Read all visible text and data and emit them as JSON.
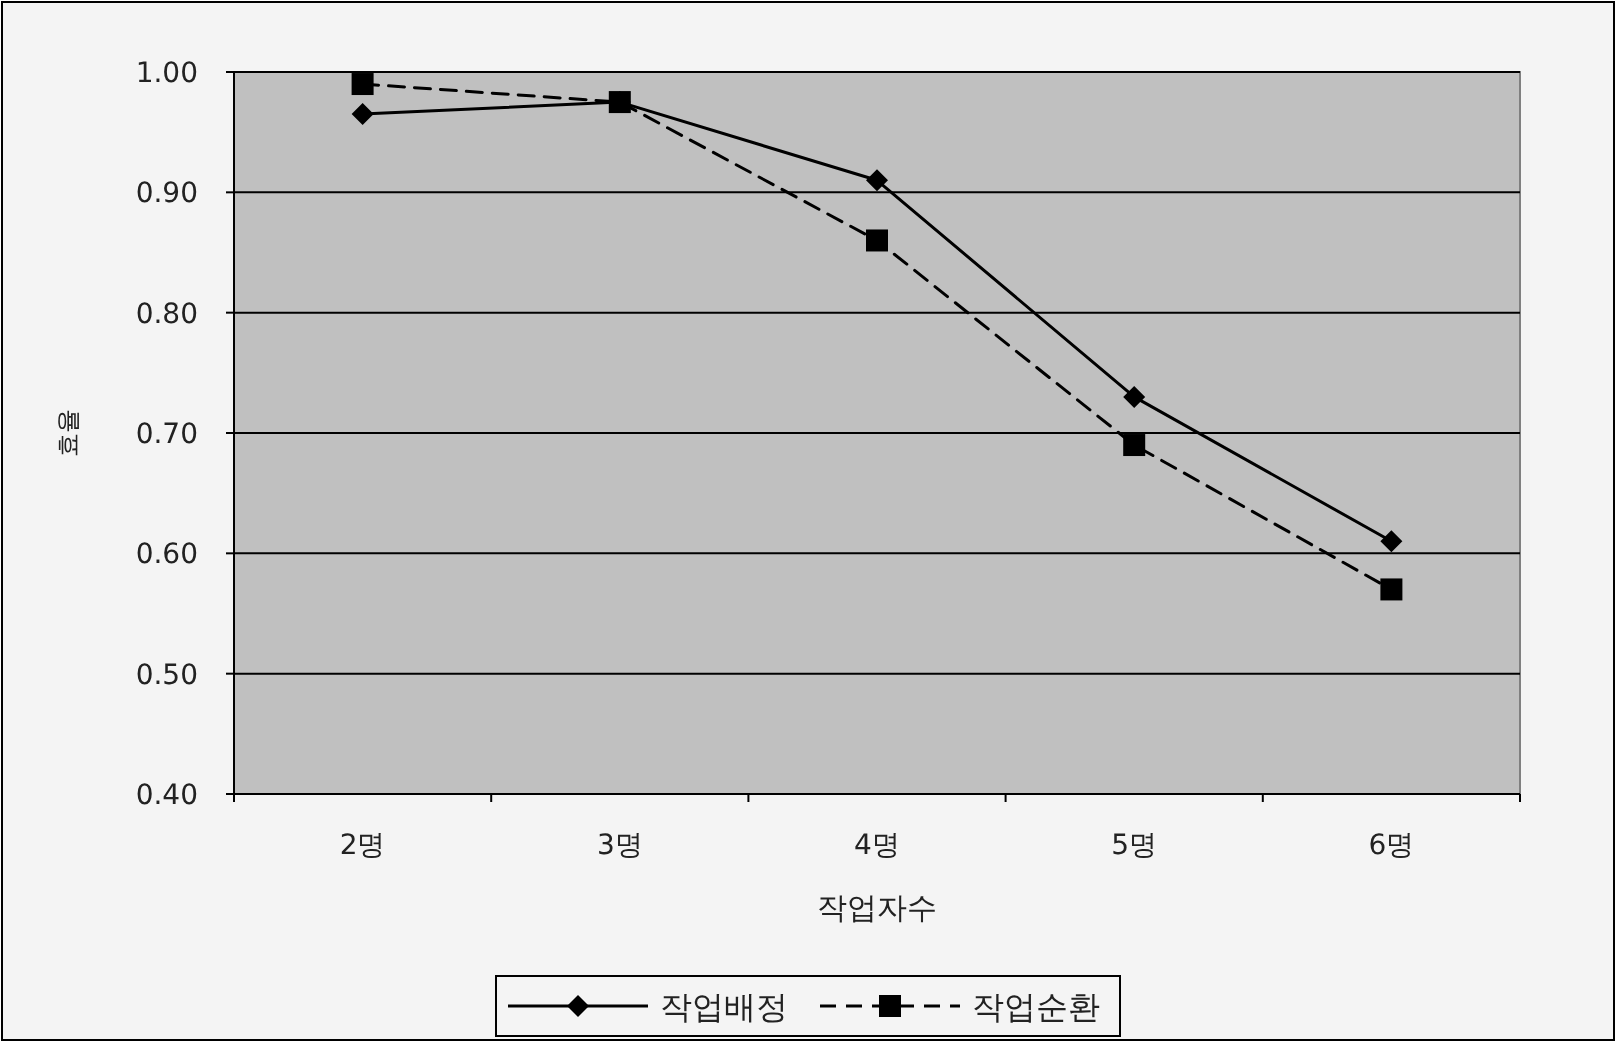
{
  "chart_data": {
    "type": "line",
    "xlabel": "작업자수",
    "ylabel": "효율",
    "categories": [
      "2명",
      "3명",
      "4명",
      "5명",
      "6명"
    ],
    "series": [
      {
        "name": "작업배정",
        "color": "#000000",
        "marker": "diamond",
        "line_style": "solid",
        "values": [
          0.965,
          0.975,
          0.91,
          0.73,
          0.61
        ]
      },
      {
        "name": "작업순환",
        "color": "#000000",
        "marker": "square",
        "line_style": "dashed",
        "values": [
          0.99,
          0.975,
          0.86,
          0.69,
          0.57
        ]
      }
    ],
    "ylim": [
      0.4,
      1.0
    ],
    "yticks": [
      {
        "value": 0.4,
        "label": "0.40"
      },
      {
        "value": 0.5,
        "label": "0.50"
      },
      {
        "value": 0.6,
        "label": "0.60"
      },
      {
        "value": 0.7,
        "label": "0.70"
      },
      {
        "value": 0.8,
        "label": "0.80"
      },
      {
        "value": 0.9,
        "label": "0.90"
      },
      {
        "value": 1.0,
        "label": "1.00"
      }
    ],
    "grid": "y",
    "legend": "bottom"
  }
}
